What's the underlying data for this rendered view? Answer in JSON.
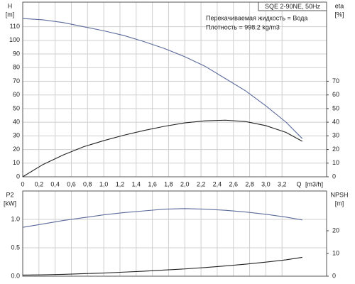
{
  "chart_data": [
    {
      "type": "line",
      "y_label": "H",
      "y_unit": "[m]",
      "y2_label": "eta",
      "y2_unit": "[%]",
      "x_label": "Q",
      "x_unit": "[m3/h]",
      "annotations": [
        "SQE 2-90NE, 50Hz",
        "Перекачиваемая жидкость = Вода",
        "Плотность = 998.2 kg/m3"
      ],
      "x": [
        0,
        0.25,
        0.5,
        0.75,
        1.0,
        1.25,
        1.5,
        1.75,
        2.0,
        2.25,
        2.5,
        2.75,
        3.0,
        3.25,
        3.45
      ],
      "series": [
        {
          "name": "H",
          "color": "#5b6a9c",
          "values": [
            116,
            115,
            113,
            110,
            107,
            103.5,
            99,
            94,
            88,
            81,
            72,
            63,
            52,
            40,
            28
          ]
        },
        {
          "name": "eta",
          "color": "#222222",
          "axis": "y2",
          "values": [
            0,
            9,
            16,
            22,
            26.5,
            30.5,
            34,
            37,
            39.5,
            41,
            41.5,
            40.5,
            37.5,
            32.5,
            26
          ]
        }
      ],
      "xlim": [
        0,
        3.75
      ],
      "xticks": [
        0,
        {
          "value": 0.2,
          "label": "0,2"
        },
        {
          "value": 0.4,
          "label": "0,4"
        },
        {
          "value": 0.6,
          "label": "0,6"
        },
        {
          "value": 0.8,
          "label": "0,8"
        },
        {
          "value": 1.0,
          "label": "1,0"
        },
        {
          "value": 1.2,
          "label": "1,2"
        },
        {
          "value": 1.4,
          "label": "1,4"
        },
        {
          "value": 1.6,
          "label": "1,6"
        },
        {
          "value": 1.8,
          "label": "1,8"
        },
        {
          "value": 2.0,
          "label": "2,0"
        },
        {
          "value": 2.2,
          "label": "2,2"
        },
        {
          "value": 2.4,
          "label": "2,4"
        },
        {
          "value": 2.6,
          "label": "2,6"
        },
        {
          "value": 2.8,
          "label": "2,8"
        },
        {
          "value": 3.0,
          "label": "3,0"
        },
        {
          "value": 3.2,
          "label": "3,2"
        }
      ],
      "ylim": [
        0,
        128
      ],
      "yticks": [
        0,
        10,
        20,
        30,
        40,
        50,
        60,
        70,
        80,
        90,
        100,
        110
      ],
      "y2lim": [
        0,
        128
      ],
      "y2ticks": [
        0,
        10,
        20,
        30,
        40,
        50,
        60,
        70
      ],
      "grid": true
    },
    {
      "type": "line",
      "y_label": "P2",
      "y_unit": "[kW]",
      "y2_label": "NPSH",
      "y2_unit": "[m]",
      "x": [
        0,
        0.25,
        0.5,
        0.75,
        1.0,
        1.25,
        1.5,
        1.75,
        2.0,
        2.25,
        2.5,
        2.75,
        3.0,
        3.25,
        3.45
      ],
      "series": [
        {
          "name": "P2",
          "color": "#5b6a9c",
          "values": [
            0.86,
            0.92,
            0.98,
            1.03,
            1.08,
            1.12,
            1.15,
            1.18,
            1.19,
            1.18,
            1.16,
            1.13,
            1.09,
            1.04,
            0.99
          ]
        },
        {
          "name": "NPSH",
          "color": "#222222",
          "axis": "y2",
          "values": [
            0.5,
            0.6,
            0.8,
            1.1,
            1.4,
            1.8,
            2.2,
            2.7,
            3.2,
            3.8,
            4.5,
            5.3,
            6.2,
            7.2,
            8.3
          ]
        }
      ],
      "xlim": [
        0,
        3.75
      ],
      "ylim": [
        0,
        1.5
      ],
      "yticks": [
        {
          "value": 0,
          "label": "0.0"
        },
        {
          "value": 0.5,
          "label": "0.5"
        },
        {
          "value": 1.0,
          "label": "1.0"
        }
      ],
      "y2lim": [
        0,
        37.5
      ],
      "y2ticks": [
        0,
        10,
        20
      ],
      "grid": true
    }
  ]
}
